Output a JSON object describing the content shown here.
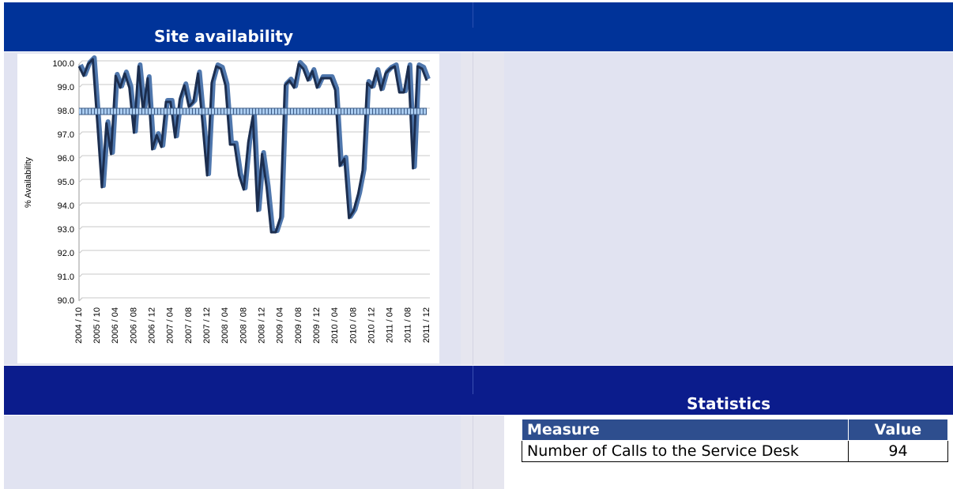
{
  "panels": {
    "site_title": "Site availability",
    "stats_title": "Statistics"
  },
  "chart_data": {
    "type": "line",
    "ylabel": "% Availability",
    "categories": [
      "2004 / 10",
      null,
      null,
      null,
      "2005 / 10",
      null,
      null,
      null,
      "2006 / 04",
      null,
      null,
      null,
      "2006 / 08",
      null,
      null,
      null,
      "2006 / 12",
      null,
      null,
      null,
      "2007 / 04",
      null,
      null,
      null,
      "2007 / 08",
      null,
      null,
      null,
      "2007 / 12",
      null,
      null,
      null,
      "2008 / 04",
      null,
      null,
      null,
      "2008 / 08",
      null,
      null,
      null,
      "2008 / 12",
      null,
      null,
      null,
      "2009 / 04",
      null,
      null,
      null,
      "2009 / 08",
      null,
      null,
      null,
      "2009 / 12",
      null,
      null,
      null,
      "2010 / 04",
      null,
      null,
      null,
      "2010 / 08",
      null,
      null,
      null,
      "2010 / 12",
      null,
      null,
      null,
      "2011 / 04",
      null,
      null,
      null,
      "2011 / 08",
      null,
      null,
      null,
      "2011 / 12"
    ],
    "series": [
      {
        "color": "#1c2e4f",
        "values": [
          99.9,
          99.5,
          100.0,
          100.2,
          97.5,
          94.8,
          97.5,
          96.2,
          99.5,
          99.0,
          99.6,
          99.0,
          97.1,
          99.9,
          98.0,
          99.4,
          96.4,
          97.0,
          96.5,
          98.4,
          98.4,
          96.9,
          98.5,
          99.1,
          98.2,
          98.4,
          99.6,
          97.5,
          95.3,
          99.2,
          99.9,
          99.8,
          99.1,
          96.6,
          96.6,
          95.3,
          94.7,
          96.7,
          97.8,
          93.8,
          96.2,
          94.8,
          92.9,
          92.9,
          93.5,
          99.1,
          99.3,
          99.0,
          100.0,
          99.8,
          99.3,
          99.7,
          99.0,
          99.4,
          99.4,
          99.4,
          98.9,
          95.7,
          96.0,
          93.5,
          93.8,
          94.5,
          95.5,
          99.2,
          99.0,
          99.7,
          98.9,
          99.6,
          99.8,
          99.9,
          98.8,
          98.8,
          99.9,
          95.6,
          99.9,
          99.8,
          99.3
        ]
      },
      {
        "color": "#a9cbef",
        "values": [
          98.0,
          98.0,
          98.0,
          98.0,
          98.0,
          98.0,
          98.0,
          98.0,
          98.0,
          98.0,
          98.0,
          98.0,
          98.0,
          98.0,
          98.0,
          98.0,
          98.0,
          98.0,
          98.0,
          98.0,
          98.0,
          98.0,
          98.0,
          98.0,
          98.0,
          98.0,
          98.0,
          98.0,
          98.0,
          98.0,
          98.0,
          98.0,
          98.0,
          98.0,
          98.0,
          98.0,
          98.0,
          98.0,
          98.0,
          98.0,
          98.0,
          98.0,
          98.0,
          98.0,
          98.0,
          98.0,
          98.0,
          98.0,
          98.0,
          98.0,
          98.0,
          98.0,
          98.0,
          98.0,
          98.0,
          98.0,
          98.0,
          98.0,
          98.0,
          98.0,
          98.0,
          98.0,
          98.0,
          98.0,
          98.0,
          98.0,
          98.0,
          98.0,
          98.0,
          98.0,
          98.0,
          98.0,
          98.0,
          98.0,
          98.0,
          98.0,
          98.0
        ]
      }
    ],
    "ylim": [
      90,
      100
    ],
    "yticks": [
      {
        "value": 90,
        "label": "90.0"
      },
      {
        "value": 91,
        "label": "91.0"
      },
      {
        "value": 92,
        "label": "92.0"
      },
      {
        "value": 93,
        "label": "93.0"
      },
      {
        "value": 94,
        "label": "94.0"
      },
      {
        "value": 95,
        "label": "95.0"
      },
      {
        "value": 96,
        "label": "96.0"
      },
      {
        "value": 97,
        "label": "97.0"
      },
      {
        "value": 98,
        "label": "98.0"
      },
      {
        "value": 99,
        "label": "99.0"
      },
      {
        "value": 100,
        "label": "100.0"
      }
    ],
    "grid": true
  },
  "table": {
    "headers": [
      "Measure",
      "Value"
    ],
    "rows": [
      [
        "Number of Calls to the Service Desk",
        94
      ]
    ]
  }
}
